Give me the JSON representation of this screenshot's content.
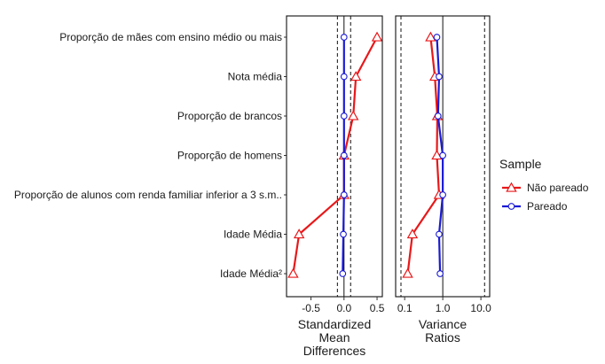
{
  "chart_data": {
    "type": "line",
    "categories": [
      "Proporção de mães com ensino médio ou mais",
      "Nota média",
      "Proporção de brancos",
      "Proporção de homens",
      "Proporção de alunos com renda familiar inferior a 3 s.m..",
      "Idade Média",
      "Idade Média²"
    ],
    "panels": [
      {
        "name": "smd",
        "xlabel": [
          "Standardized",
          "Mean",
          "Differences"
        ],
        "scale": "linear",
        "xlim": [
          -0.87,
          0.58
        ],
        "ticks": [
          -0.5,
          0.0,
          0.5
        ],
        "tick_labels": [
          "-0.5",
          "0.0",
          "0.5"
        ],
        "reference_line": 0.0,
        "threshold_lines": [
          -0.1,
          0.1
        ],
        "series": [
          {
            "key": "np",
            "values": [
              0.5,
              0.18,
              0.14,
              0.0,
              0.0,
              -0.68,
              -0.77
            ]
          },
          {
            "key": "p",
            "values": [
              0.0,
              0.0,
              0.0,
              0.0,
              0.0,
              -0.01,
              -0.02
            ]
          }
        ]
      },
      {
        "name": "vr",
        "xlabel": [
          "Variance",
          "Ratios"
        ],
        "scale": "log",
        "xlim": [
          0.058,
          17.0
        ],
        "ticks": [
          0.1,
          1.0,
          10.0
        ],
        "tick_labels": [
          "0.1",
          "1.0",
          "10.0"
        ],
        "reference_line": 1.0,
        "threshold_lines": [
          0.08,
          12.5
        ],
        "series": [
          {
            "key": "np",
            "values": [
              0.48,
              0.62,
              0.72,
              0.7,
              0.8,
              0.16,
              0.12
            ]
          },
          {
            "key": "p",
            "values": [
              0.7,
              0.8,
              0.75,
              1.0,
              1.0,
              0.8,
              0.85
            ]
          }
        ]
      }
    ],
    "legend": {
      "title": "Sample",
      "placement": "right",
      "entries": [
        {
          "key": "np",
          "label": "Não pareado",
          "color": "#e8181a",
          "marker": "triangle"
        },
        {
          "key": "p",
          "label": "Pareado",
          "color": "#1a1ad6",
          "marker": "circle"
        }
      ]
    }
  }
}
